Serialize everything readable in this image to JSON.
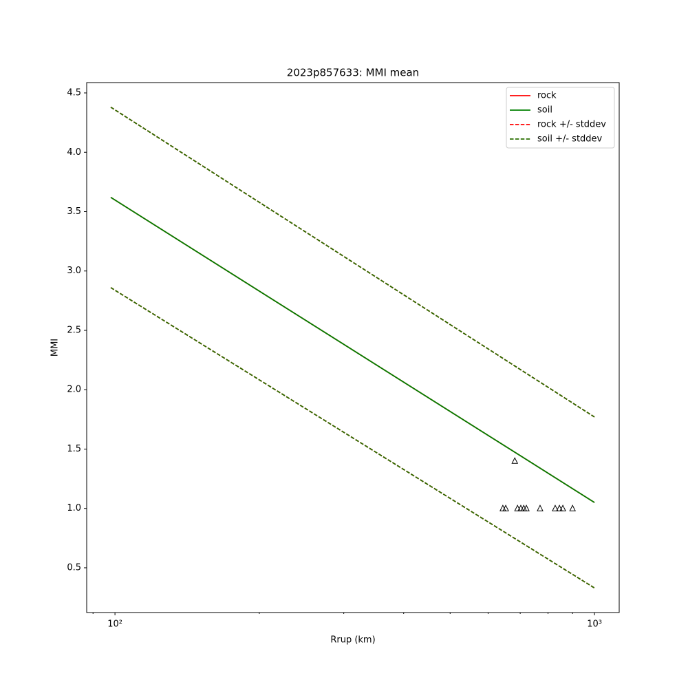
{
  "chart_data": {
    "type": "line",
    "title": "2023p857633: MMI mean",
    "x_label": "Rrup (km)",
    "y_label": "MMI",
    "log_x": true,
    "xlim": [
      87.3,
      1126
    ],
    "ylim": [
      0.123,
      4.587
    ],
    "xticks": [
      {
        "value": 100,
        "label": "10²"
      },
      {
        "value": 1000,
        "label": "10³"
      }
    ],
    "xminorticks": [
      90,
      200,
      300,
      400,
      500,
      600,
      700,
      800,
      900
    ],
    "yticks": [
      0.5,
      {
        "value": 1,
        "label": "1.0"
      },
      1.5,
      {
        "value": 2,
        "label": "2.0"
      },
      2.5,
      {
        "value": 3,
        "label": "3.0"
      },
      3.5,
      {
        "value": 4,
        "label": "4.0"
      },
      4.5
    ],
    "x": [
      98,
      1000
    ],
    "series": [
      {
        "name": "rock",
        "color": "#ff0000",
        "style": "solid",
        "values": [
          3.62,
          1.05
        ]
      },
      {
        "name": "soil",
        "color": "#008000",
        "style": "solid",
        "values": [
          3.62,
          1.05
        ]
      },
      {
        "name": "rock +/- stddev",
        "color": "#ff0000",
        "style": "dashed",
        "upper": [
          4.38,
          1.77
        ],
        "lower": [
          2.86,
          0.33
        ]
      },
      {
        "name": "soil +/- stddev",
        "color": "#2a6e00",
        "style": "dashed",
        "upper": [
          4.38,
          1.77
        ],
        "lower": [
          2.86,
          0.33
        ]
      }
    ],
    "observations": {
      "marker": "triangle",
      "color": "#000000",
      "x": [
        644,
        653,
        682,
        691,
        702,
        712,
        721,
        770,
        828,
        845,
        859,
        900
      ],
      "values": [
        1,
        1,
        1.4,
        1,
        1,
        1,
        1,
        1,
        1,
        1,
        1,
        1
      ]
    },
    "legend": "upper right"
  }
}
